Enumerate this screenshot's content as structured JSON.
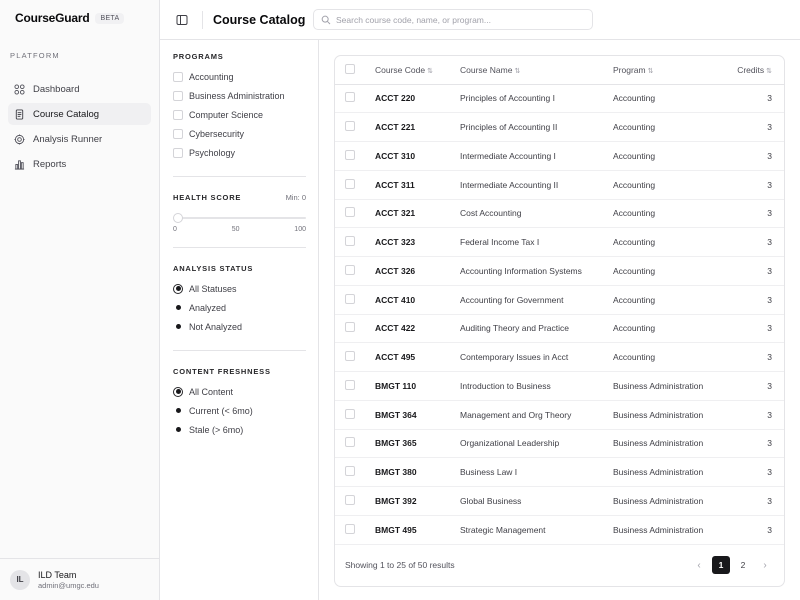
{
  "brand": {
    "name": "CourseGuard",
    "badge": "BETA"
  },
  "sidebar": {
    "section": "PLATFORM",
    "items": [
      {
        "label": "Dashboard",
        "icon": "dashboard-icon"
      },
      {
        "label": "Course Catalog",
        "icon": "book-icon",
        "active": true
      },
      {
        "label": "Analysis Runner",
        "icon": "target-icon"
      },
      {
        "label": "Reports",
        "icon": "bar-chart-icon"
      }
    ],
    "user": {
      "initials": "IL",
      "name": "ILD Team",
      "email": "admin@umgc.edu"
    }
  },
  "header": {
    "title": "Course Catalog",
    "search_placeholder": "Search course code, name, or program..."
  },
  "filters": {
    "programs": {
      "title": "PROGRAMS",
      "options": [
        "Accounting",
        "Business Administration",
        "Computer Science",
        "Cybersecurity",
        "Psychology"
      ]
    },
    "health": {
      "title": "HEALTH SCORE",
      "min_label": "Min: 0",
      "value": 0,
      "ticks": [
        "0",
        "50",
        "100"
      ]
    },
    "status": {
      "title": "ANALYSIS STATUS",
      "options": [
        "All Statuses",
        "Analyzed",
        "Not Analyzed"
      ],
      "selected": "All Statuses"
    },
    "freshness": {
      "title": "CONTENT FRESHNESS",
      "options": [
        "All Content",
        "Current (< 6mo)",
        "Stale (> 6mo)"
      ],
      "selected": "All Content"
    }
  },
  "table": {
    "columns": [
      "Course Code",
      "Course Name",
      "Program",
      "Credits"
    ],
    "sort_glyph": "⇅",
    "rows": [
      [
        "ACCT 220",
        "Principles of Accounting I",
        "Accounting",
        "3"
      ],
      [
        "ACCT 221",
        "Principles of Accounting II",
        "Accounting",
        "3"
      ],
      [
        "ACCT 310",
        "Intermediate Accounting I",
        "Accounting",
        "3"
      ],
      [
        "ACCT 311",
        "Intermediate Accounting II",
        "Accounting",
        "3"
      ],
      [
        "ACCT 321",
        "Cost Accounting",
        "Accounting",
        "3"
      ],
      [
        "ACCT 323",
        "Federal Income Tax I",
        "Accounting",
        "3"
      ],
      [
        "ACCT 326",
        "Accounting Information Systems",
        "Accounting",
        "3"
      ],
      [
        "ACCT 410",
        "Accounting for Government",
        "Accounting",
        "3"
      ],
      [
        "ACCT 422",
        "Auditing Theory and Practice",
        "Accounting",
        "3"
      ],
      [
        "ACCT 495",
        "Contemporary Issues in Acct",
        "Accounting",
        "3"
      ],
      [
        "BMGT 110",
        "Introduction to Business",
        "Business Administration",
        "3"
      ],
      [
        "BMGT 364",
        "Management and Org Theory",
        "Business Administration",
        "3"
      ],
      [
        "BMGT 365",
        "Organizational Leadership",
        "Business Administration",
        "3"
      ],
      [
        "BMGT 380",
        "Business Law I",
        "Business Administration",
        "3"
      ],
      [
        "BMGT 392",
        "Global Business",
        "Business Administration",
        "3"
      ],
      [
        "BMGT 495",
        "Strategic Management",
        "Business Administration",
        "3"
      ]
    ],
    "footer": "Showing 1 to 25 of 50 results",
    "pages": [
      "1",
      "2"
    ],
    "current_page": "1",
    "prev": "‹",
    "next": "›"
  }
}
